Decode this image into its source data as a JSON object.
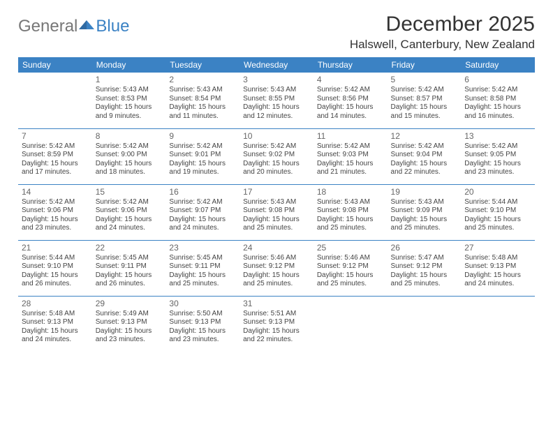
{
  "brand": {
    "part1": "General",
    "part2": "Blue"
  },
  "title": "December 2025",
  "subtitle": "Halswell, Canterbury, New Zealand",
  "colors": {
    "header_bg": "#3b82c4",
    "header_text": "#ffffff",
    "divider": "#3b82c4",
    "text": "#444444",
    "title_text": "#333333"
  },
  "day_headers": [
    "Sunday",
    "Monday",
    "Tuesday",
    "Wednesday",
    "Thursday",
    "Friday",
    "Saturday"
  ],
  "weeks": [
    [
      {
        "n": "",
        "sr": "",
        "ss": "",
        "dl": ""
      },
      {
        "n": "1",
        "sr": "Sunrise: 5:43 AM",
        "ss": "Sunset: 8:53 PM",
        "dl": "Daylight: 15 hours and 9 minutes."
      },
      {
        "n": "2",
        "sr": "Sunrise: 5:43 AM",
        "ss": "Sunset: 8:54 PM",
        "dl": "Daylight: 15 hours and 11 minutes."
      },
      {
        "n": "3",
        "sr": "Sunrise: 5:43 AM",
        "ss": "Sunset: 8:55 PM",
        "dl": "Daylight: 15 hours and 12 minutes."
      },
      {
        "n": "4",
        "sr": "Sunrise: 5:42 AM",
        "ss": "Sunset: 8:56 PM",
        "dl": "Daylight: 15 hours and 14 minutes."
      },
      {
        "n": "5",
        "sr": "Sunrise: 5:42 AM",
        "ss": "Sunset: 8:57 PM",
        "dl": "Daylight: 15 hours and 15 minutes."
      },
      {
        "n": "6",
        "sr": "Sunrise: 5:42 AM",
        "ss": "Sunset: 8:58 PM",
        "dl": "Daylight: 15 hours and 16 minutes."
      }
    ],
    [
      {
        "n": "7",
        "sr": "Sunrise: 5:42 AM",
        "ss": "Sunset: 8:59 PM",
        "dl": "Daylight: 15 hours and 17 minutes."
      },
      {
        "n": "8",
        "sr": "Sunrise: 5:42 AM",
        "ss": "Sunset: 9:00 PM",
        "dl": "Daylight: 15 hours and 18 minutes."
      },
      {
        "n": "9",
        "sr": "Sunrise: 5:42 AM",
        "ss": "Sunset: 9:01 PM",
        "dl": "Daylight: 15 hours and 19 minutes."
      },
      {
        "n": "10",
        "sr": "Sunrise: 5:42 AM",
        "ss": "Sunset: 9:02 PM",
        "dl": "Daylight: 15 hours and 20 minutes."
      },
      {
        "n": "11",
        "sr": "Sunrise: 5:42 AM",
        "ss": "Sunset: 9:03 PM",
        "dl": "Daylight: 15 hours and 21 minutes."
      },
      {
        "n": "12",
        "sr": "Sunrise: 5:42 AM",
        "ss": "Sunset: 9:04 PM",
        "dl": "Daylight: 15 hours and 22 minutes."
      },
      {
        "n": "13",
        "sr": "Sunrise: 5:42 AM",
        "ss": "Sunset: 9:05 PM",
        "dl": "Daylight: 15 hours and 23 minutes."
      }
    ],
    [
      {
        "n": "14",
        "sr": "Sunrise: 5:42 AM",
        "ss": "Sunset: 9:06 PM",
        "dl": "Daylight: 15 hours and 23 minutes."
      },
      {
        "n": "15",
        "sr": "Sunrise: 5:42 AM",
        "ss": "Sunset: 9:06 PM",
        "dl": "Daylight: 15 hours and 24 minutes."
      },
      {
        "n": "16",
        "sr": "Sunrise: 5:42 AM",
        "ss": "Sunset: 9:07 PM",
        "dl": "Daylight: 15 hours and 24 minutes."
      },
      {
        "n": "17",
        "sr": "Sunrise: 5:43 AM",
        "ss": "Sunset: 9:08 PM",
        "dl": "Daylight: 15 hours and 25 minutes."
      },
      {
        "n": "18",
        "sr": "Sunrise: 5:43 AM",
        "ss": "Sunset: 9:08 PM",
        "dl": "Daylight: 15 hours and 25 minutes."
      },
      {
        "n": "19",
        "sr": "Sunrise: 5:43 AM",
        "ss": "Sunset: 9:09 PM",
        "dl": "Daylight: 15 hours and 25 minutes."
      },
      {
        "n": "20",
        "sr": "Sunrise: 5:44 AM",
        "ss": "Sunset: 9:10 PM",
        "dl": "Daylight: 15 hours and 25 minutes."
      }
    ],
    [
      {
        "n": "21",
        "sr": "Sunrise: 5:44 AM",
        "ss": "Sunset: 9:10 PM",
        "dl": "Daylight: 15 hours and 26 minutes."
      },
      {
        "n": "22",
        "sr": "Sunrise: 5:45 AM",
        "ss": "Sunset: 9:11 PM",
        "dl": "Daylight: 15 hours and 26 minutes."
      },
      {
        "n": "23",
        "sr": "Sunrise: 5:45 AM",
        "ss": "Sunset: 9:11 PM",
        "dl": "Daylight: 15 hours and 25 minutes."
      },
      {
        "n": "24",
        "sr": "Sunrise: 5:46 AM",
        "ss": "Sunset: 9:12 PM",
        "dl": "Daylight: 15 hours and 25 minutes."
      },
      {
        "n": "25",
        "sr": "Sunrise: 5:46 AM",
        "ss": "Sunset: 9:12 PM",
        "dl": "Daylight: 15 hours and 25 minutes."
      },
      {
        "n": "26",
        "sr": "Sunrise: 5:47 AM",
        "ss": "Sunset: 9:12 PM",
        "dl": "Daylight: 15 hours and 25 minutes."
      },
      {
        "n": "27",
        "sr": "Sunrise: 5:48 AM",
        "ss": "Sunset: 9:13 PM",
        "dl": "Daylight: 15 hours and 24 minutes."
      }
    ],
    [
      {
        "n": "28",
        "sr": "Sunrise: 5:48 AM",
        "ss": "Sunset: 9:13 PM",
        "dl": "Daylight: 15 hours and 24 minutes."
      },
      {
        "n": "29",
        "sr": "Sunrise: 5:49 AM",
        "ss": "Sunset: 9:13 PM",
        "dl": "Daylight: 15 hours and 23 minutes."
      },
      {
        "n": "30",
        "sr": "Sunrise: 5:50 AM",
        "ss": "Sunset: 9:13 PM",
        "dl": "Daylight: 15 hours and 23 minutes."
      },
      {
        "n": "31",
        "sr": "Sunrise: 5:51 AM",
        "ss": "Sunset: 9:13 PM",
        "dl": "Daylight: 15 hours and 22 minutes."
      },
      {
        "n": "",
        "sr": "",
        "ss": "",
        "dl": ""
      },
      {
        "n": "",
        "sr": "",
        "ss": "",
        "dl": ""
      },
      {
        "n": "",
        "sr": "",
        "ss": "",
        "dl": ""
      }
    ]
  ]
}
